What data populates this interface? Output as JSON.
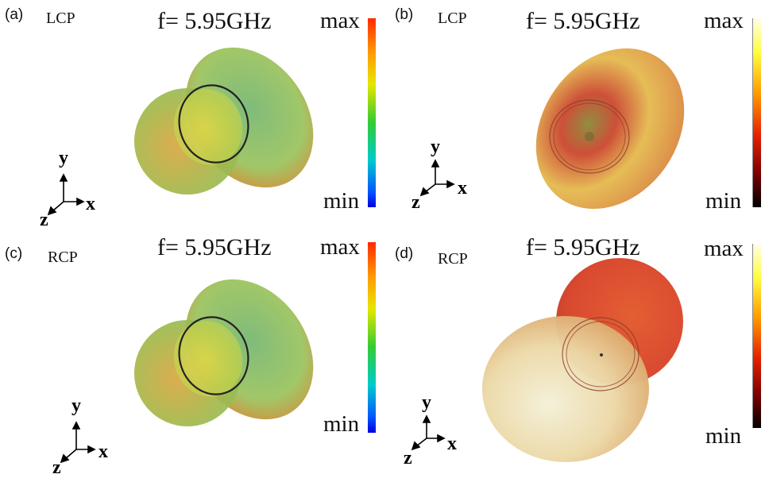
{
  "panels": [
    {
      "label": "(a)",
      "polarization": "LCP",
      "frequency": "f= 5.95GHz",
      "colorbar": {
        "max": "max",
        "min": "min",
        "colormap": "jet"
      }
    },
    {
      "label": "(b)",
      "polarization": "LCP",
      "frequency": "f= 5.95GHz",
      "colorbar": {
        "max": "max",
        "min": "min",
        "colormap": "hot"
      }
    },
    {
      "label": "(c)",
      "polarization": "RCP",
      "frequency": "f= 5.95GHz",
      "colorbar": {
        "max": "max",
        "min": "min",
        "colormap": "jet"
      }
    },
    {
      "label": "(d)",
      "polarization": "RCP",
      "frequency": "f= 5.95GHz",
      "colorbar": {
        "max": "max",
        "min": "min",
        "colormap": "hot"
      }
    }
  ],
  "axes": {
    "x": "x",
    "y": "y",
    "z": "z"
  }
}
